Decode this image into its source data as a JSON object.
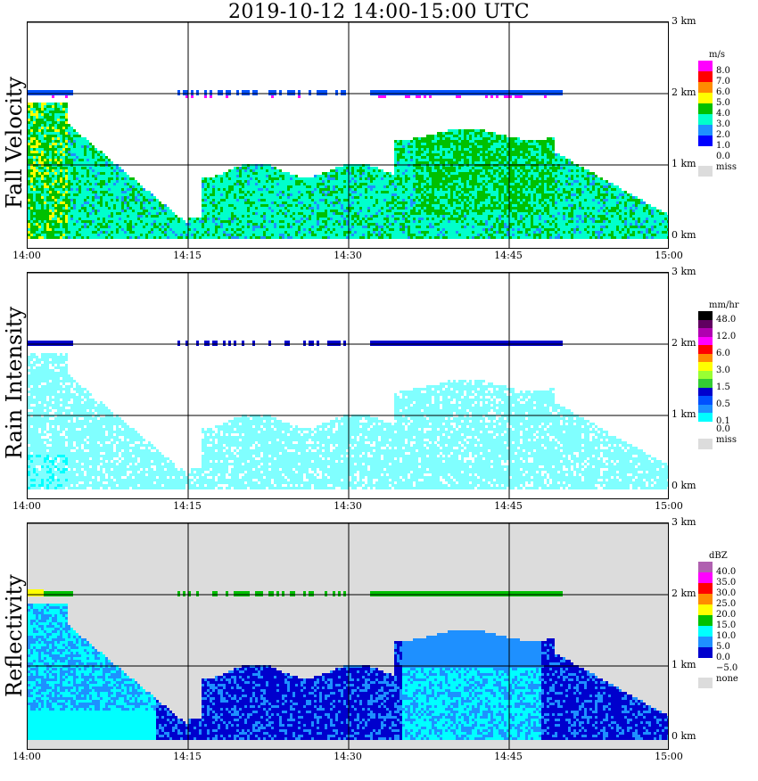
{
  "title": "2019-10-12   14:00-15:00 UTC",
  "height_labels": [
    "3 km",
    "2 km",
    "1 km",
    "0 km"
  ],
  "time_labels": [
    "14:00",
    "14:15",
    "14:30",
    "14:45",
    "15:00"
  ],
  "missing_color": "#dcdcdc",
  "panels": [
    {
      "title": "Fall Velocity",
      "legend_unit": "m/s",
      "legend": [
        {
          "label": "8.0",
          "color": "#ff00ff"
        },
        {
          "label": "7.0",
          "color": "#ff0000"
        },
        {
          "label": "6.0",
          "color": "#ff8c00"
        },
        {
          "label": "5.0",
          "color": "#ffff00"
        },
        {
          "label": "4.0",
          "color": "#00c000"
        },
        {
          "label": "3.0",
          "color": "#00ffcc"
        },
        {
          "label": "2.0",
          "color": "#1e90ff"
        },
        {
          "label": "1.0",
          "color": "#0000ff"
        },
        {
          "label": "0.0",
          "color": "#ffffff"
        }
      ],
      "missing_label": "miss",
      "background": "#ffffff"
    },
    {
      "title": "Rain Intensity",
      "legend_unit": "mm/hr",
      "legend": [
        {
          "label": "48.0",
          "color": "#000000"
        },
        {
          "label": "",
          "color": "#600060"
        },
        {
          "label": "12.0",
          "color": "#b000b0"
        },
        {
          "label": "",
          "color": "#ff00ff"
        },
        {
          "label": "6.0",
          "color": "#ff0000"
        },
        {
          "label": "",
          "color": "#ff8c00"
        },
        {
          "label": "3.0",
          "color": "#ffff00"
        },
        {
          "label": "",
          "color": "#99ff33"
        },
        {
          "label": "1.5",
          "color": "#33cc33"
        },
        {
          "label": "",
          "color": "#0000cd"
        },
        {
          "label": "0.5",
          "color": "#0050ff"
        },
        {
          "label": "",
          "color": "#1e90ff"
        },
        {
          "label": "0.1",
          "color": "#00ffff"
        },
        {
          "label": "0.0",
          "color": "#ffffff"
        }
      ],
      "missing_label": "miss",
      "background": "#ffffff"
    },
    {
      "title": "Reflectivity",
      "legend_unit": "dBZ",
      "legend": [
        {
          "label": "40.0",
          "color": "#b060b0"
        },
        {
          "label": "35.0",
          "color": "#ff00ff"
        },
        {
          "label": "30.0",
          "color": "#ff0000"
        },
        {
          "label": "25.0",
          "color": "#ff8c00"
        },
        {
          "label": "20.0",
          "color": "#ffff00"
        },
        {
          "label": "15.0",
          "color": "#00c000"
        },
        {
          "label": "10.0",
          "color": "#00ffff"
        },
        {
          "label": "5.0",
          "color": "#1e90ff"
        },
        {
          "label": "0.0",
          "color": "#0000cd"
        },
        {
          "label": "−5.0",
          "color": "#ffffff"
        }
      ],
      "missing_label": "none",
      "background": "#dcdcdc"
    }
  ],
  "chart_data": [
    {
      "type": "heatmap",
      "title": "Fall Velocity",
      "x_range": [
        "14:00",
        "15:00"
      ],
      "y_range_km": [
        0,
        3
      ],
      "grid": true,
      "legend_position": "right",
      "unit": "m/s",
      "scale": [
        0.0,
        1.0,
        2.0,
        3.0,
        4.0,
        5.0,
        6.0,
        7.0,
        8.0
      ]
    },
    {
      "type": "heatmap",
      "title": "Rain Intensity",
      "x_range": [
        "14:00",
        "15:00"
      ],
      "y_range_km": [
        0,
        3
      ],
      "grid": true,
      "legend_position": "right",
      "unit": "mm/hr",
      "scale": [
        0.0,
        0.1,
        0.5,
        1.5,
        3.0,
        6.0,
        12.0,
        48.0
      ]
    },
    {
      "type": "heatmap",
      "title": "Reflectivity",
      "x_range": [
        "14:00",
        "15:00"
      ],
      "y_range_km": [
        0,
        3
      ],
      "grid": true,
      "legend_position": "right",
      "unit": "dBZ",
      "scale": [
        -5.0,
        0.0,
        5.0,
        10.0,
        15.0,
        20.0,
        25.0,
        30.0,
        35.0,
        40.0
      ]
    }
  ]
}
